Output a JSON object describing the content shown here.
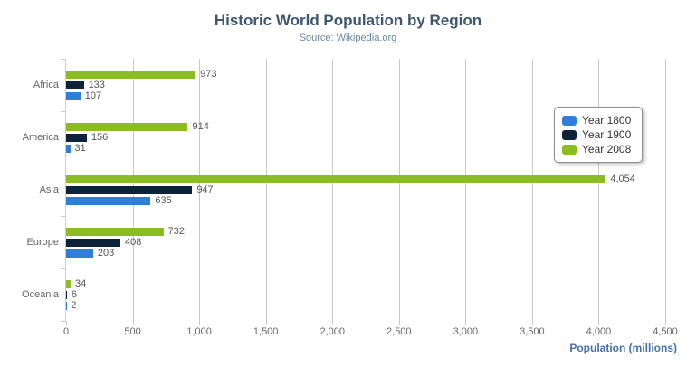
{
  "header": {
    "title": "Historic World Population by Region",
    "subtitle": "Source: Wikipedia.org"
  },
  "icons": {
    "menu": "hamburger-icon"
  },
  "colors": {
    "title": "#3E576F",
    "subtitle": "#6D869F",
    "axis_label": "#666666",
    "data_label": "#555555",
    "gridline": "#C8C8C8",
    "category_axis": "#C0D0E0",
    "axis_title": "#4572A7",
    "legend_border": "#909090",
    "legend_text": "#333333",
    "menu_icon": "#666666",
    "series_year_1800": "#2f7ed8",
    "series_year_1900": "#0d233a",
    "series_year_2008": "#8bbc21"
  },
  "chart_data": {
    "type": "bar",
    "title": "Historic World Population by Region",
    "subtitle": "Source: Wikipedia.org",
    "categories": [
      "Africa",
      "America",
      "Asia",
      "Europe",
      "Oceania"
    ],
    "series": [
      {
        "name": "Year 1800",
        "color": "#2f7ed8",
        "values": [
          107,
          31,
          635,
          203,
          2
        ]
      },
      {
        "name": "Year 1900",
        "color": "#0d233a",
        "values": [
          133,
          156,
          947,
          408,
          6
        ]
      },
      {
        "name": "Year 2008",
        "color": "#8bbc21",
        "values": [
          973,
          914,
          4054,
          732,
          34
        ]
      }
    ],
    "bar_order_top_to_bottom": [
      "Year 2008",
      "Year 1900",
      "Year 1800"
    ],
    "data_labels": {
      "Africa": {
        "Year 2008": "973",
        "Year 1900": "133",
        "Year 1800": "107"
      },
      "America": {
        "Year 2008": "914",
        "Year 1900": "156",
        "Year 1800": "31"
      },
      "Asia": {
        "Year 2008": "4,054",
        "Year 1900": "947",
        "Year 1800": "635"
      },
      "Europe": {
        "Year 2008": "732",
        "Year 1900": "408",
        "Year 1800": "203"
      },
      "Oceania": {
        "Year 2008": "34",
        "Year 1900": "6",
        "Year 1800": "2"
      }
    },
    "xlabel": "Population (millions)",
    "ylabel": "",
    "xlim": [
      0,
      4500
    ],
    "x_ticks": [
      0,
      500,
      1000,
      1500,
      2000,
      2500,
      3000,
      3500,
      4000,
      4500
    ],
    "x_tick_labels": [
      "0",
      "500",
      "1,000",
      "1,500",
      "2,000",
      "2,500",
      "3,000",
      "3,500",
      "4,000",
      "4,500"
    ],
    "grid": true,
    "legend_position": "right",
    "legend_items": [
      "Year 1800",
      "Year 1900",
      "Year 2008"
    ]
  }
}
